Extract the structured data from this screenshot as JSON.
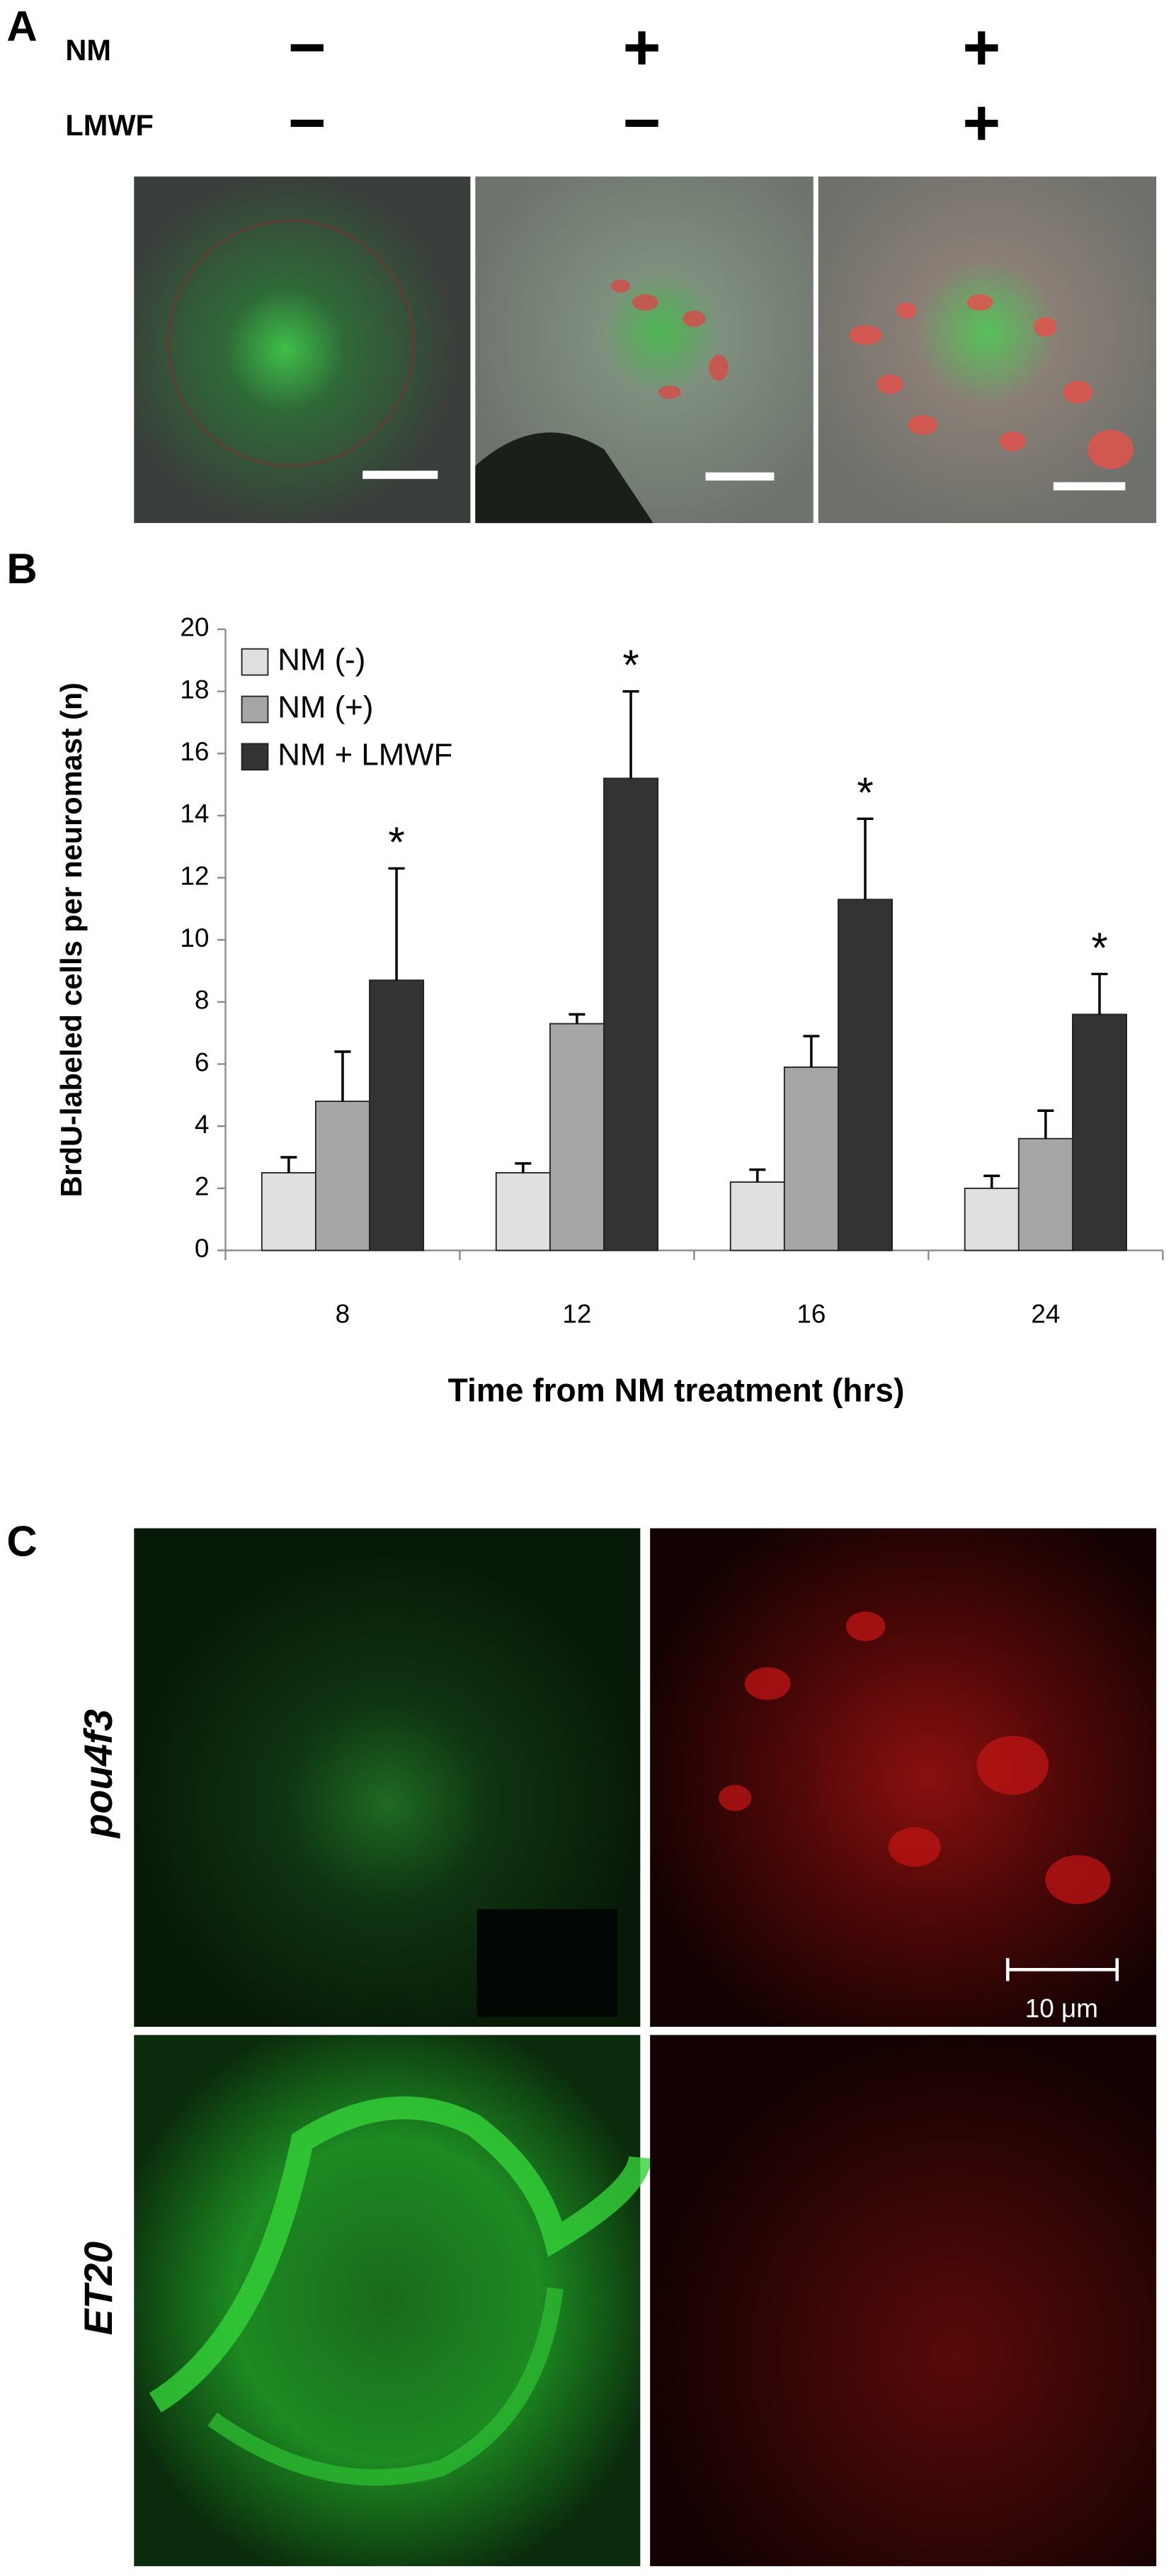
{
  "panel_labels": [
    "A",
    "B",
    "C"
  ],
  "panel_a": {
    "rows": [
      {
        "label": "NM",
        "conditions": [
          "−",
          "+",
          "+"
        ]
      },
      {
        "label": "LMWF",
        "conditions": [
          "−",
          "−",
          "+"
        ]
      }
    ]
  },
  "chart_data": {
    "type": "bar",
    "y_label": "BrdU-labeled cells per neuromast (n)",
    "x_label": "Time from NM treatment (hrs)",
    "categories": [
      "8",
      "12",
      "16",
      "24"
    ],
    "series": [
      {
        "name": "NM (-)",
        "color": "#e0e0e0",
        "values": [
          2.5,
          2.5,
          2.2,
          2.0
        ],
        "errors": [
          0.5,
          0.3,
          0.4,
          0.4
        ]
      },
      {
        "name": "NM (+)",
        "color": "#a6a6a6",
        "values": [
          4.8,
          7.3,
          5.9,
          3.6
        ],
        "errors": [
          1.6,
          0.3,
          1.0,
          0.9
        ]
      },
      {
        "name": "NM + LMWF",
        "color": "#333333",
        "values": [
          8.7,
          15.2,
          11.3,
          7.6
        ],
        "errors": [
          3.6,
          2.8,
          2.6,
          1.3
        ],
        "significance": [
          "*",
          "*",
          "*",
          "*"
        ]
      }
    ],
    "ylim": [
      0,
      20
    ],
    "yticks": [
      0,
      2,
      4,
      6,
      8,
      10,
      12,
      14,
      16,
      18,
      20
    ],
    "grid": false,
    "legend": "upper-left"
  },
  "panel_c": {
    "row_labels": [
      "pou4f3",
      "ET20"
    ],
    "scale_bar": "10 μm"
  }
}
